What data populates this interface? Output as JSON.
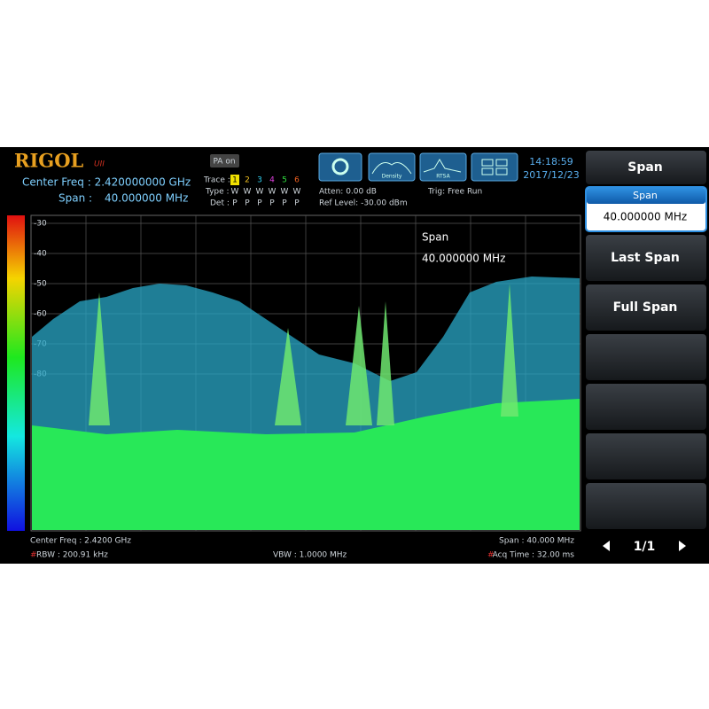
{
  "header": {
    "brand": "RIGOL",
    "brand_suffix": "UII",
    "pa": "PA on",
    "center_freq": "Center Freq : 2.420000000 GHz",
    "span_label": "Span :",
    "span_value": "40.000000 MHz",
    "trace": {
      "trace_label": "Trace :",
      "numbers": [
        "1",
        "2",
        "3",
        "4",
        "5",
        "6"
      ],
      "type_label": "Type :",
      "types": [
        "W",
        "W",
        "W",
        "W",
        "W",
        "W"
      ],
      "det_label": "Det :",
      "dets": [
        "P",
        "P",
        "P",
        "P",
        "P",
        "P"
      ]
    },
    "atten": "Atten: 0.00 dB",
    "ref_level": "Ref Level: -30.00 dBm",
    "trig": "Trig: Free Run",
    "modes": [
      "Density",
      "RTSA"
    ],
    "time": "14:18:59",
    "date": "2017/12/23"
  },
  "display": {
    "yticks": [
      "-30",
      "-40",
      "-50",
      "-60",
      "-70",
      "-80"
    ],
    "marker_label": "Span",
    "marker_value": "40.000000 MHz"
  },
  "footer": {
    "center": "Center Freq : 2.4200 GHz",
    "rbw_flag": "#",
    "rbw": "RBW : 200.91 kHz",
    "vbw": "VBW : 1.0000 MHz",
    "span": "Span : 40.000 MHz",
    "acq_flag": "#",
    "acq": "Acq Time : 32.00 ms"
  },
  "softkeys": {
    "title": "Span",
    "active_label": "Span",
    "active_value": "40.000000 MHz",
    "items": [
      "Last Span",
      "Full Span"
    ],
    "page": "1/1"
  }
}
